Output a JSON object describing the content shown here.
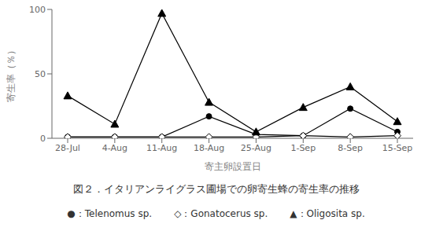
{
  "chart_data": {
    "type": "line",
    "title": "図２．イタリアンライグラス圃場での卵寄生蜂の寄生率の推移",
    "x_label": "寄主卵設置日",
    "y_label": "寄生率（％）",
    "categories": [
      "28-Jul",
      "4-Aug",
      "11-Aug",
      "18-Aug",
      "25-Aug",
      "1-Sep",
      "8-Sep",
      "15-Sep"
    ],
    "series": [
      {
        "name": "●：Telenomus sp.",
        "color": "#000000",
        "marker": "circle",
        "values": [
          1,
          1,
          1,
          17,
          3,
          2,
          23,
          5
        ]
      },
      {
        "name": "◇：Gonatocerus sp.",
        "color": "#000000",
        "marker": "diamond",
        "values": [
          1,
          1,
          1,
          1,
          1,
          2,
          1,
          2
        ]
      },
      {
        "name": "▲：Oligosita sp.",
        "color": "#000000",
        "marker": "triangle",
        "values": [
          33,
          11,
          97,
          28,
          5,
          24,
          40,
          13
        ]
      }
    ],
    "ylim": [
      0,
      100
    ],
    "yticks": [
      0,
      50,
      100
    ],
    "grid": false,
    "legend": "bottom"
  }
}
